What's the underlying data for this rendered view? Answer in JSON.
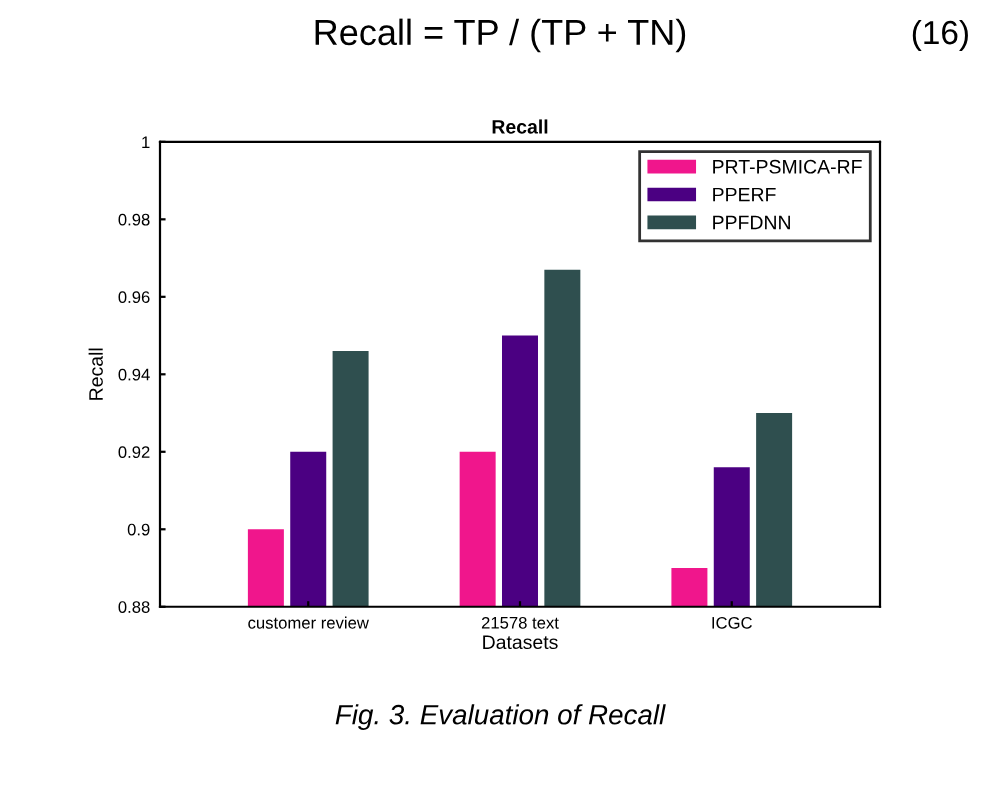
{
  "chart_data": {
    "type": "bar",
    "title": "Recall",
    "xlabel": "Datasets",
    "ylabel": "Recall",
    "categories": [
      "customer review",
      "21578 text",
      "ICGC"
    ],
    "series": [
      {
        "name": "PRT-PSMICA-RF",
        "color": "#f0168c",
        "values": [
          0.9,
          0.92,
          0.89
        ]
      },
      {
        "name": "PPERF",
        "color": "#4b0082",
        "values": [
          0.92,
          0.95,
          0.916
        ]
      },
      {
        "name": "PPFDNN",
        "color": "#2f4f4f",
        "values": [
          0.946,
          0.967,
          0.93
        ]
      }
    ],
    "ylim": [
      0.88,
      1
    ],
    "yticks": [
      0.88,
      0.9,
      0.92,
      0.94,
      0.96,
      0.98,
      1
    ],
    "grid": false,
    "legend": "top right",
    "annotations": [
      "Recall = TP / (TP + TN)",
      "(16)",
      "Fig. 3. Evaluation of Recall"
    ]
  }
}
